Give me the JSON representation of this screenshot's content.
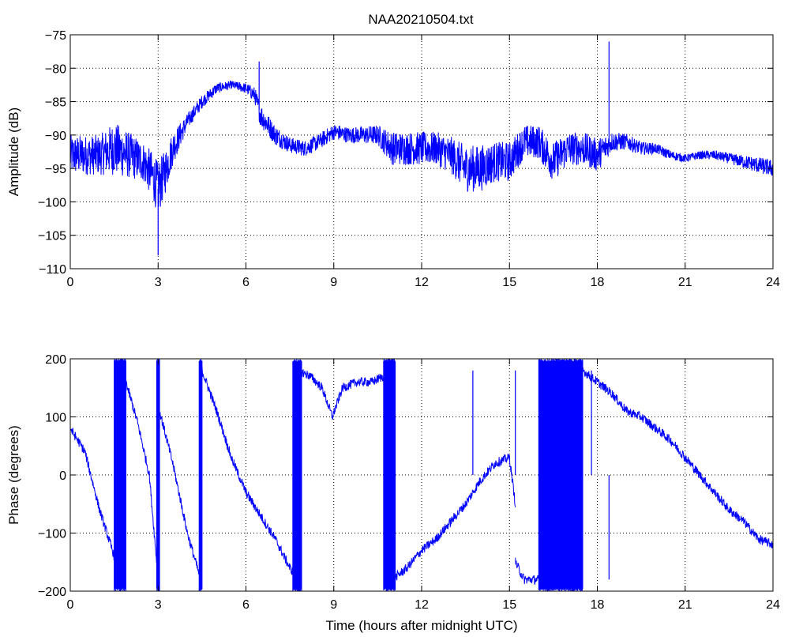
{
  "chart_data": [
    {
      "type": "line",
      "title": "NAA20210504.txt",
      "xlabel": "",
      "ylabel": "Amplitude (dB)",
      "xlim": [
        0,
        24
      ],
      "ylim": [
        -110,
        -75
      ],
      "xticks": [
        "0",
        "3",
        "6",
        "9",
        "12",
        "15",
        "18",
        "21",
        "24"
      ],
      "yticks": [
        "-110",
        "-105",
        "-100",
        "-95",
        "-90",
        "-85",
        "-80",
        "-75"
      ],
      "grid": true,
      "line_color": "#0000ff",
      "series": [
        {
          "x": [
            0,
            0.5,
            1.0,
            1.5,
            2.0,
            2.5,
            2.8,
            3.0,
            3.2,
            3.5,
            4.0,
            4.5,
            5.0,
            5.5,
            6.0,
            6.3,
            6.5,
            7.0,
            7.5,
            8.0,
            8.5,
            9.0,
            9.5,
            10.0,
            10.5,
            11.0,
            11.5,
            12.0,
            12.5,
            13.0,
            13.5,
            14.0,
            14.5,
            15.0,
            15.5,
            16.0,
            16.5,
            17.0,
            17.5,
            18.0,
            18.5,
            19.0,
            19.5,
            20.0,
            20.5,
            21.0,
            21.5,
            22.0,
            22.5,
            23.0,
            23.5,
            24.0
          ],
          "mid": [
            -93,
            -93,
            -93,
            -92,
            -93,
            -94,
            -96,
            -98,
            -96,
            -92,
            -88,
            -85,
            -83,
            -82.5,
            -83,
            -84,
            -87,
            -90,
            -91.5,
            -92,
            -91,
            -89.5,
            -90,
            -90,
            -90,
            -92,
            -92,
            -92,
            -92,
            -93,
            -95,
            -95,
            -94,
            -94,
            -91,
            -91,
            -94,
            -92,
            -92,
            -93,
            -91,
            -91,
            -92,
            -92,
            -93,
            -93.5,
            -93,
            -93,
            -93.5,
            -94,
            -94.5,
            -95
          ],
          "spread": [
            3,
            3,
            3,
            4,
            3.5,
            3,
            3.5,
            4,
            3.5,
            2.5,
            1.2,
            1,
            0.8,
            0.6,
            0.8,
            1.2,
            1.8,
            1.5,
            1.2,
            1.2,
            1.2,
            1.2,
            1.2,
            1.3,
            1.5,
            2.5,
            2.5,
            2.5,
            2.5,
            2.8,
            3.5,
            3.5,
            3.0,
            3.0,
            2.5,
            2.5,
            3.0,
            2.5,
            2.5,
            2.5,
            1.5,
            1.2,
            1.0,
            0.8,
            0.7,
            0.6,
            0.6,
            0.7,
            0.8,
            1.0,
            1.2,
            1.3
          ],
          "spikes": [
            {
              "x": 3.0,
              "y": -108
            },
            {
              "x": 6.45,
              "y": -79
            },
            {
              "x": 18.4,
              "y": -76
            }
          ]
        }
      ]
    },
    {
      "type": "line",
      "title": "",
      "xlabel": "Time (hours after midnight UTC)",
      "ylabel": "Phase (degrees)",
      "xlim": [
        0,
        24
      ],
      "ylim": [
        -200,
        200
      ],
      "xticks": [
        "0",
        "3",
        "6",
        "9",
        "12",
        "15",
        "18",
        "21",
        "24"
      ],
      "yticks": [
        "-200",
        "-100",
        "0",
        "100",
        "200"
      ],
      "grid": true,
      "line_color": "#0000ff",
      "series": [
        {
          "segments": [
            {
              "x": [
                0,
                0.5,
                1.0,
                1.5,
                1.8
              ],
              "y": [
                80,
                40,
                -60,
                -140,
                -180
              ]
            },
            {
              "x": [
                1.9,
                2.3,
                2.7,
                3.0
              ],
              "y": [
                160,
                90,
                0,
                -180
              ]
            },
            {
              "x": [
                3.05,
                3.5,
                4.0,
                4.45
              ],
              "y": [
                110,
                20,
                -100,
                -180
              ]
            },
            {
              "x": [
                4.5,
                5.0,
                5.5,
                6.0,
                6.5,
                7.0,
                7.5,
                7.8
              ],
              "y": [
                180,
                110,
                30,
                -30,
                -70,
                -110,
                -160,
                -180
              ]
            },
            {
              "x": [
                7.8,
                8.2,
                8.6,
                8.95,
                9.3,
                9.8,
                10.3,
                10.7
              ],
              "y": [
                180,
                170,
                150,
                100,
                150,
                160,
                160,
                170
              ]
            },
            {
              "x": [
                11.0,
                11.5,
                12.0,
                12.5,
                13.0,
                13.5,
                14.0,
                14.5,
                15.0,
                15.2
              ],
              "y": [
                -180,
                -160,
                -130,
                -110,
                -80,
                -50,
                -10,
                20,
                30,
                -50
              ]
            },
            {
              "x": [
                15.2,
                15.5,
                16.0
              ],
              "y": [
                -150,
                -180,
                -180
              ]
            },
            {
              "x": [
                17.5,
                18.0,
                18.5,
                19.0,
                19.5,
                20.0,
                20.5,
                21.0,
                21.5,
                22.0,
                22.5,
                23.0,
                23.5,
                24.0
              ],
              "y": [
                180,
                160,
                140,
                110,
                100,
                80,
                60,
                30,
                0,
                -30,
                -60,
                -80,
                -110,
                -120
              ]
            }
          ],
          "wrap_bands": [
            [
              1.5,
              1.9
            ],
            [
              2.95,
              3.05
            ],
            [
              4.4,
              4.5
            ],
            [
              7.6,
              7.9
            ],
            [
              10.7,
              11.1
            ],
            [
              16.0,
              17.5
            ]
          ],
          "spikes": [
            {
              "x": 13.75,
              "y": 180
            },
            {
              "x": 15.2,
              "y": 180
            },
            {
              "x": 18.4,
              "y": -180
            },
            {
              "x": 17.8,
              "y": 180
            }
          ]
        }
      ]
    }
  ]
}
